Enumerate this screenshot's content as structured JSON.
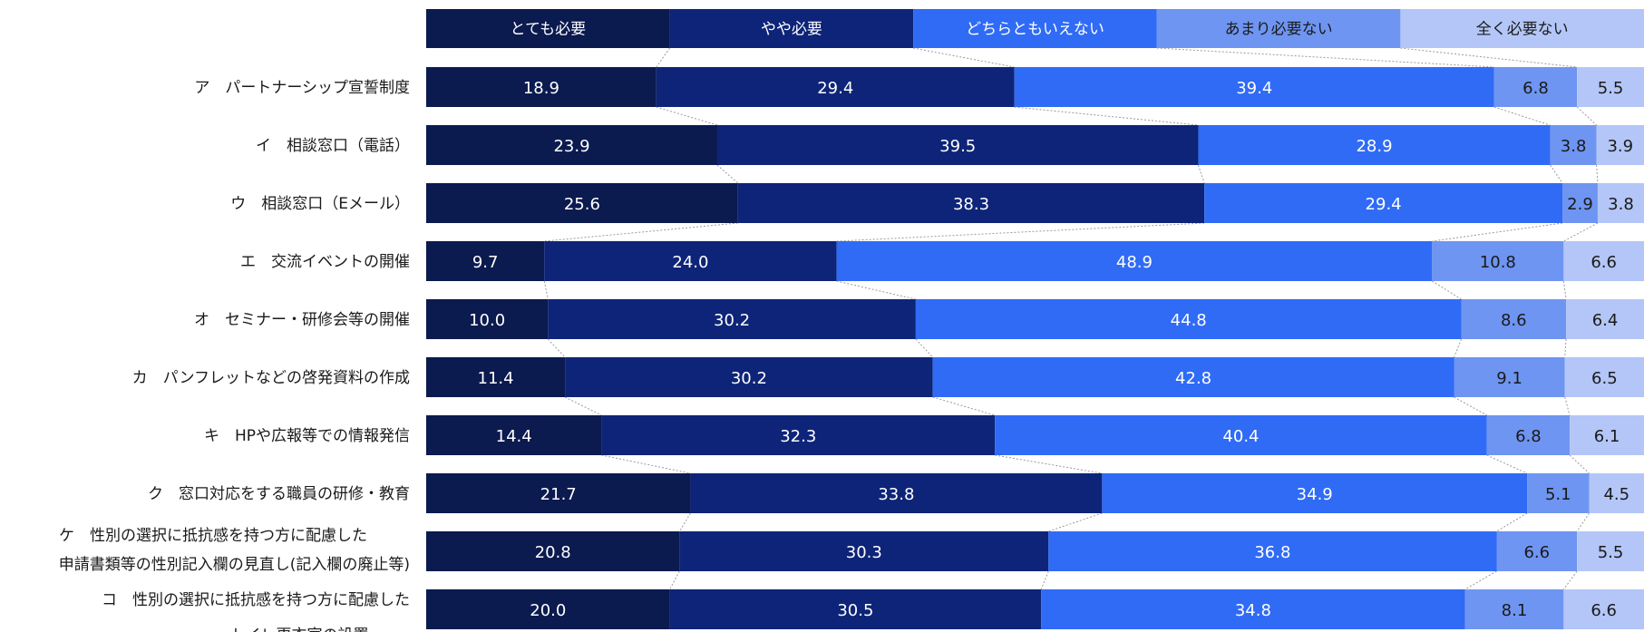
{
  "chart_data": {
    "type": "bar",
    "orientation": "horizontal",
    "stacked": true,
    "normalized_percent": true,
    "legend_placement": "top",
    "grid": false,
    "connector_lines": true,
    "categories": [
      [
        "ア　パートナーシップ宣誓制度"
      ],
      [
        "イ　相談窓口（電話）"
      ],
      [
        "ウ　相談窓口（Eメール）"
      ],
      [
        "エ　交流イベントの開催"
      ],
      [
        "オ　セミナー・研修会等の開催"
      ],
      [
        "カ　パンフレットなどの啓発資料の作成"
      ],
      [
        "キ　HPや広報等での情報発信"
      ],
      [
        "ク　窓口対応をする職員の研修・教育"
      ],
      [
        "ケ　性別の選択に抵抗感を持つ方に配慮した",
        "申請書類等の性別記入欄の見直し(記入欄の廃止等)"
      ],
      [
        "コ　性別の選択に抵抗感を持つ方に配慮した",
        "トイレ更衣室の設置"
      ]
    ],
    "series": [
      {
        "name": "とても必要",
        "color": "#0b1a4f",
        "label_color": "#ffffff",
        "values": [
          18.9,
          23.9,
          25.6,
          9.7,
          10.0,
          11.4,
          14.4,
          21.7,
          20.8,
          20.0
        ]
      },
      {
        "name": "やや必要",
        "color": "#0d2478",
        "label_color": "#ffffff",
        "values": [
          29.4,
          39.5,
          38.3,
          24.0,
          30.2,
          30.2,
          32.3,
          33.8,
          30.3,
          30.5
        ]
      },
      {
        "name": "どちらともいえない",
        "color": "#2f6bf5",
        "label_color": "#ffffff",
        "values": [
          39.4,
          28.9,
          29.4,
          48.9,
          44.8,
          42.8,
          40.4,
          34.9,
          36.8,
          34.8
        ]
      },
      {
        "name": "あまり必要ない",
        "color": "#6f95f2",
        "label_color": "#1a1a1a",
        "values": [
          6.8,
          3.8,
          2.9,
          10.8,
          8.6,
          9.1,
          6.8,
          5.1,
          6.6,
          8.1
        ]
      },
      {
        "name": "全く必要ない",
        "color": "#b3c6f7",
        "label_color": "#1a1a1a",
        "values": [
          5.5,
          3.9,
          3.8,
          6.6,
          6.4,
          6.5,
          6.1,
          4.5,
          5.5,
          6.6
        ]
      }
    ]
  }
}
